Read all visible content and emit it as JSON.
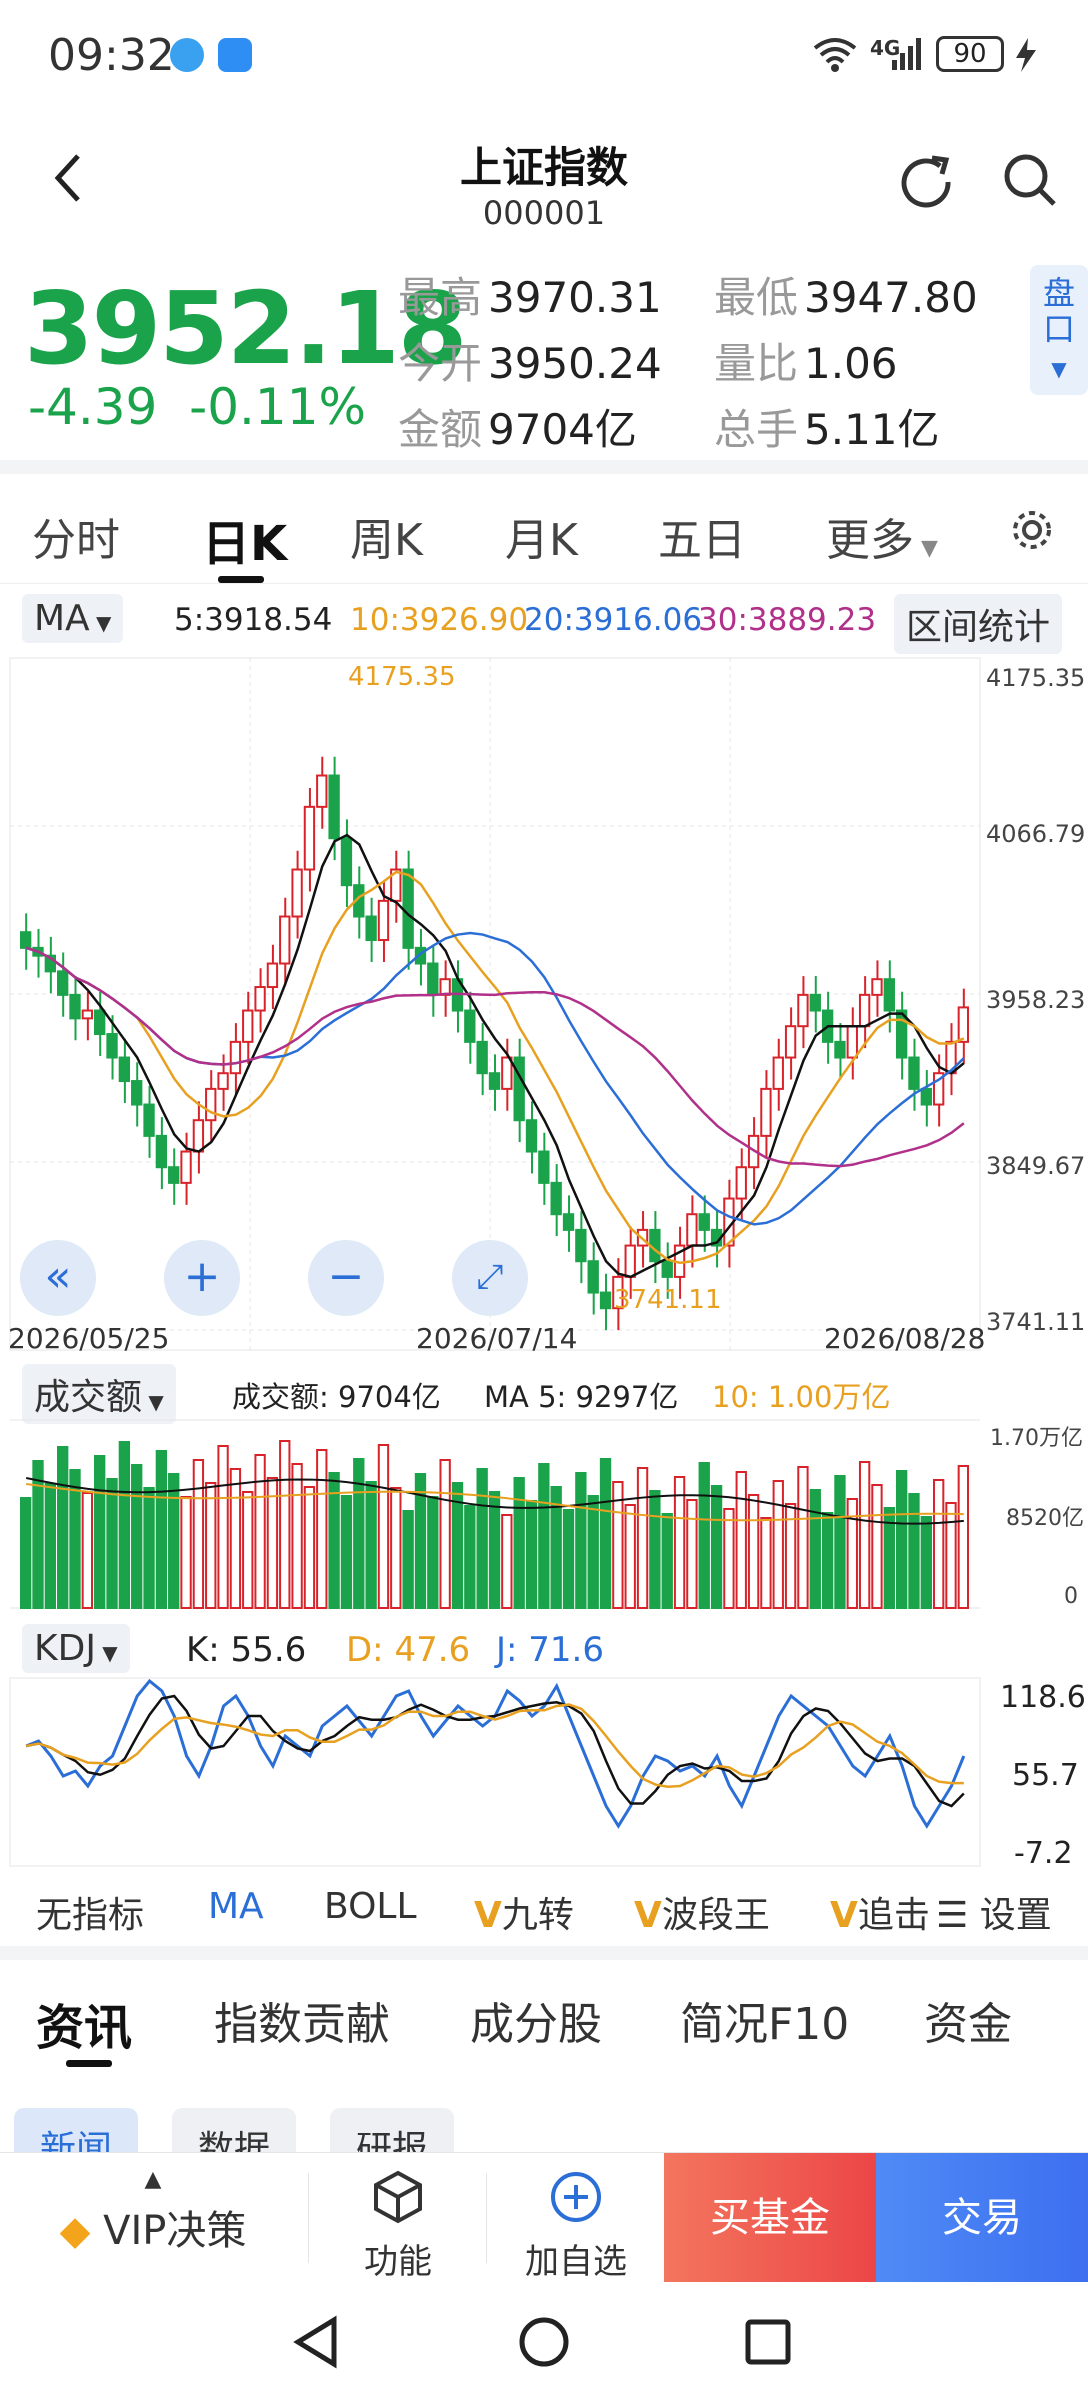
{
  "status": {
    "time": "09:32",
    "network": "4G",
    "battery": "90"
  },
  "header": {
    "back_icon": "chevron-left-icon",
    "title": "上证指数",
    "code": "000001",
    "refresh_icon": "refresh-icon",
    "search_icon": "search-icon"
  },
  "quote": {
    "price": "3952.18",
    "change": "-4.39",
    "change_pct": "-0.11%",
    "stats": {
      "high_label": "最高",
      "high": "3970.31",
      "low_label": "最低",
      "low": "3947.80",
      "open_label": "今开",
      "open": "3950.24",
      "ratio_label": "量比",
      "ratio": "1.06",
      "amount_label": "金额",
      "amount": "9704亿",
      "hands_label": "总手",
      "hands": "5.11亿"
    },
    "pankou": "盘口"
  },
  "period_tabs": [
    "分时",
    "日K",
    "周K",
    "月K",
    "五日",
    "更多"
  ],
  "active_tab": "日K",
  "ma_bar": {
    "selector": "MA",
    "ma5": "5:3918.54",
    "ma10": "10:3926.90",
    "ma20": "20:3916.06",
    "ma30": "30:3889.23",
    "range_stats": "区间统计"
  },
  "price_axis": [
    "4175.35",
    "4066.79",
    "3958.23",
    "3849.67",
    "3741.11"
  ],
  "annotations": {
    "high": "4175.35",
    "low": "3741.11"
  },
  "dates": [
    "2026/05/25",
    "2026/07/14",
    "2026/08/28"
  ],
  "volume": {
    "selector": "成交额",
    "amount": "成交额: 9704亿",
    "ma5": "MA 5: 9297亿",
    "ma10": "10: 1.00万亿",
    "axis": [
      "1.70万亿",
      "8520亿",
      "0"
    ]
  },
  "kdj": {
    "selector": "KDJ",
    "k": "K: 55.6",
    "d": "D: 47.6",
    "j": "J: 71.6",
    "axis": [
      "118.6",
      "55.7",
      "-7.2"
    ]
  },
  "indicator_tabs": [
    "无指标",
    "MA",
    "BOLL",
    "九转",
    "波段王",
    "追击",
    "设置"
  ],
  "info_tabs": [
    "资讯",
    "指数贡献",
    "成分股",
    "简况F10",
    "资金"
  ],
  "info_sub_tabs": [
    "新闻",
    "数据",
    "研报"
  ],
  "bottom_bar": {
    "vip": "VIP决策",
    "func": "功能",
    "add": "加自选",
    "buy_fund": "买基金",
    "trade": "交易"
  },
  "colors": {
    "up": "#d8232a",
    "down": "#1aa34a",
    "ma5": "#111111",
    "ma10": "#e8a020",
    "ma20": "#2a6ed6",
    "ma30": "#b0308a",
    "accent": "#2a6ed6"
  },
  "chart_data": {
    "type": "candlestick",
    "y_range": [
      3741.11,
      4175.35
    ],
    "x_labels": [
      "2026/05/25",
      "2026/07/14",
      "2026/08/28"
    ],
    "series_names": [
      "MA5",
      "MA10",
      "MA20",
      "MA30"
    ]
  }
}
